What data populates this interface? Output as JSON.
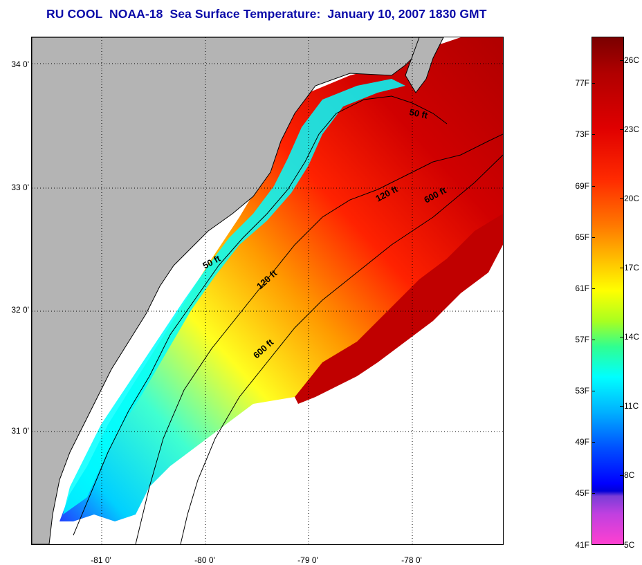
{
  "title": "RU COOL  NOAA-18  Sea Surface Temperature:  January 10, 2007 1830 GMT",
  "map": {
    "lat_labels": [
      "34 0'",
      "33 0'",
      "32 0'",
      "31 0'"
    ],
    "lon_labels": [
      "-81 0'",
      "-80 0'",
      "-79 0'",
      "-78 0'"
    ],
    "isobaths": [
      {
        "label": "50 ft",
        "depth_ft": 50
      },
      {
        "label": "50 ft",
        "depth_ft": 50
      },
      {
        "label": "120 ft",
        "depth_ft": 120
      },
      {
        "label": "120 ft",
        "depth_ft": 120
      },
      {
        "label": "600 ft",
        "depth_ft": 600
      },
      {
        "label": "600 ft",
        "depth_ft": 600
      }
    ],
    "colors": {
      "land": "#b4b4b4",
      "no_data": "#ffffff",
      "coastline": "#000000",
      "gridline": "#000000"
    }
  },
  "colorbar": {
    "fahrenheit_labels": [
      "77F",
      "73F",
      "69F",
      "65F",
      "61F",
      "57F",
      "53F",
      "49F",
      "45F",
      "41F"
    ],
    "celsius_labels": [
      "26C",
      "23C",
      "20C",
      "17C",
      "14C",
      "11C",
      "8C",
      "5C"
    ],
    "range_c": [
      5,
      27
    ],
    "colors_warm_to_cold": [
      "#7a0000",
      "#e00000",
      "#ff7700",
      "#ffff00",
      "#00ffff",
      "#0000ff",
      "#ff40d0"
    ]
  }
}
